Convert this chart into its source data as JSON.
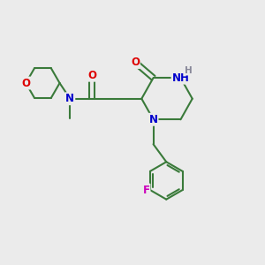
{
  "background_color": "#ebebeb",
  "bond_color": "#3a7a3a",
  "bond_width": 1.5,
  "atom_colors": {
    "O": "#dd0000",
    "N": "#0000cc",
    "H": "#888899",
    "F": "#cc00bb",
    "C": "#3a7a3a"
  },
  "font_size": 8.5
}
